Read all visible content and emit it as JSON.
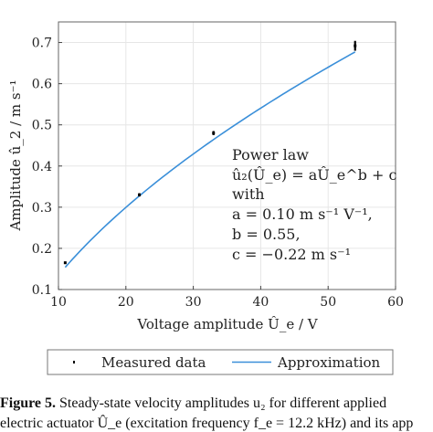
{
  "chart_data": {
    "type": "line",
    "xlabel": "Voltage amplitude Û_e / V",
    "ylabel": "Amplitude û_2 / m s⁻¹",
    "xlim": [
      10,
      60
    ],
    "ylim": [
      0.1,
      0.75
    ],
    "xticks": [
      "10",
      "20",
      "30",
      "40",
      "50",
      "60"
    ],
    "yticks": [
      "0.1",
      "0.2",
      "0.3",
      "0.4",
      "0.5",
      "0.6",
      "0.7"
    ],
    "grid": true,
    "legend_position": "bottom",
    "series": [
      {
        "name": "Measured data",
        "style": "error-bar markers",
        "color": "#000000",
        "points": [
          {
            "x": 11,
            "y": 0.165,
            "err": 0.003
          },
          {
            "x": 22,
            "y": 0.33,
            "err": 0.004
          },
          {
            "x": 33,
            "y": 0.48,
            "err": 0.005
          },
          {
            "x": 54,
            "y": 0.692,
            "err": 0.012
          }
        ]
      },
      {
        "name": "Approximation",
        "style": "line",
        "color": "#3a8fd9",
        "model": {
          "a": 0.1,
          "b": 0.55,
          "c": -0.22
        },
        "x_range": [
          11,
          54
        ]
      }
    ],
    "annotation": [
      "Power law",
      "û₂(Û_e) = aÛ_e^b + c",
      "with",
      "a = 0.10 m s⁻¹ V⁻¹,",
      "b = 0.55,",
      "c = −0.22 m s⁻¹"
    ]
  },
  "caption": {
    "line1_label": "Figure 5.",
    "line1_text": "Steady-state velocity amplitudes u₂ for different applied",
    "line2_text": "electric actuator Û_e (excitation frequency f_e = 12.2 kHz) and its app"
  }
}
